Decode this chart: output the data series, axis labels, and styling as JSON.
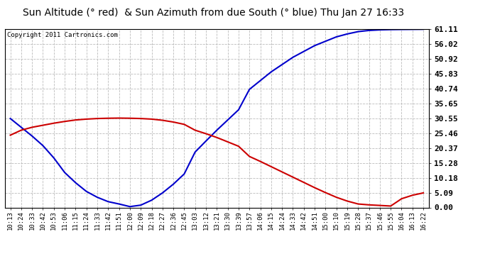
{
  "title": "Sun Altitude (° red)  & Sun Azimuth from due South (° blue) Thu Jan 27 16:33",
  "copyright": "Copyright 2011 Cartronics.com",
  "background_color": "#ffffff",
  "plot_bg_color": "#ffffff",
  "grid_color": "#bbbbbb",
  "x_labels": [
    "10:13",
    "10:24",
    "10:33",
    "10:42",
    "10:53",
    "11:06",
    "11:15",
    "11:24",
    "11:33",
    "11:42",
    "11:51",
    "12:00",
    "12:09",
    "12:18",
    "12:27",
    "12:36",
    "12:45",
    "13:03",
    "13:12",
    "13:21",
    "13:30",
    "13:39",
    "13:57",
    "14:06",
    "14:15",
    "14:24",
    "14:33",
    "14:42",
    "14:51",
    "15:00",
    "15:10",
    "15:19",
    "15:28",
    "15:37",
    "15:46",
    "15:55",
    "16:04",
    "16:13",
    "16:22"
  ],
  "yticks": [
    0.0,
    5.09,
    10.18,
    15.28,
    20.37,
    25.46,
    30.55,
    35.65,
    40.74,
    45.83,
    50.92,
    56.02,
    61.11
  ],
  "ymin": 0.0,
  "ymax": 61.11,
  "red_data": [
    24.8,
    26.5,
    27.5,
    28.2,
    28.9,
    29.5,
    30.0,
    30.3,
    30.5,
    30.6,
    30.65,
    30.6,
    30.5,
    30.3,
    29.9,
    29.3,
    28.5,
    26.5,
    25.3,
    24.0,
    22.5,
    21.0,
    17.5,
    15.8,
    14.0,
    12.2,
    10.4,
    8.6,
    6.8,
    5.1,
    3.5,
    2.2,
    1.2,
    0.9,
    0.7,
    0.5,
    3.0,
    4.2,
    5.0
  ],
  "blue_data": [
    30.5,
    27.5,
    24.5,
    21.2,
    17.0,
    12.0,
    8.5,
    5.5,
    3.5,
    2.0,
    1.2,
    0.3,
    0.8,
    2.5,
    5.0,
    8.0,
    11.5,
    19.0,
    22.8,
    26.5,
    30.0,
    33.5,
    40.5,
    43.5,
    46.5,
    49.0,
    51.5,
    53.5,
    55.5,
    57.0,
    58.5,
    59.5,
    60.3,
    60.7,
    60.9,
    61.0,
    61.05,
    61.08,
    61.11
  ],
  "line_color_red": "#cc0000",
  "line_color_blue": "#0000cc",
  "line_width": 1.5,
  "title_fontsize": 10,
  "tick_fontsize": 6.5,
  "ytick_fontsize": 8.0,
  "copyright_fontsize": 6.5
}
